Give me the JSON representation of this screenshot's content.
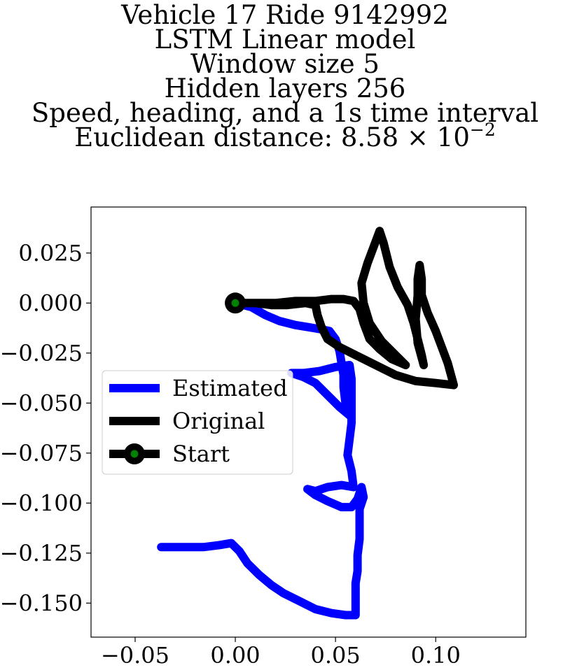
{
  "chart_data": {
    "type": "line",
    "title_lines": [
      "Vehicle 17 Ride 9142992",
      "LSTM Linear model",
      "Window size 5",
      "Hidden layers 256",
      "Speed, heading, and a 1s time interval"
    ],
    "title_metric_prefix": "Euclidean distance: ",
    "title_metric_mantissa": "8.58",
    "title_metric_times": "×",
    "title_metric_base": "10",
    "title_metric_exponent": "−2",
    "xlim": [
      -0.072,
      0.145
    ],
    "ylim": [
      -0.167,
      0.048
    ],
    "xticks": [
      -0.05,
      0.0,
      0.05,
      0.1
    ],
    "xtick_labels": [
      "−0.05",
      "0.00",
      "0.05",
      "0.10"
    ],
    "yticks": [
      0.025,
      0.0,
      -0.025,
      -0.05,
      -0.075,
      -0.1,
      -0.125,
      -0.15
    ],
    "ytick_labels": [
      "0.025",
      "0.000",
      "−0.025",
      "−0.050",
      "−0.075",
      "−0.100",
      "−0.125",
      "−0.150"
    ],
    "grid": false,
    "legend_position": "center-left",
    "series": [
      {
        "name": "Estimated",
        "color": "#0000ff",
        "points": [
          [
            0.0,
            0.0
          ],
          [
            0.008,
            -0.002
          ],
          [
            0.015,
            -0.006
          ],
          [
            0.022,
            -0.009
          ],
          [
            0.03,
            -0.011
          ],
          [
            0.036,
            -0.012
          ],
          [
            0.042,
            -0.013
          ],
          [
            0.047,
            -0.014
          ],
          [
            0.05,
            -0.018
          ],
          [
            0.052,
            -0.024
          ],
          [
            0.053,
            -0.03
          ],
          [
            0.054,
            -0.036
          ],
          [
            0.054,
            -0.042
          ],
          [
            0.055,
            -0.05
          ],
          [
            0.058,
            -0.057
          ],
          [
            0.052,
            -0.052
          ],
          [
            0.046,
            -0.046
          ],
          [
            0.04,
            -0.04
          ],
          [
            0.034,
            -0.037
          ],
          [
            0.028,
            -0.035
          ],
          [
            0.034,
            -0.035
          ],
          [
            0.042,
            -0.034
          ],
          [
            0.05,
            -0.032
          ],
          [
            0.057,
            -0.031
          ],
          [
            0.058,
            -0.038
          ],
          [
            0.058,
            -0.046
          ],
          [
            0.058,
            -0.054
          ],
          [
            0.058,
            -0.06
          ],
          [
            0.057,
            -0.068
          ],
          [
            0.056,
            -0.076
          ],
          [
            0.058,
            -0.084
          ],
          [
            0.059,
            -0.092
          ],
          [
            0.053,
            -0.091
          ],
          [
            0.046,
            -0.092
          ],
          [
            0.04,
            -0.094
          ],
          [
            0.036,
            -0.093
          ],
          [
            0.04,
            -0.096
          ],
          [
            0.046,
            -0.099
          ],
          [
            0.053,
            -0.102
          ],
          [
            0.058,
            -0.102
          ],
          [
            0.061,
            -0.098
          ],
          [
            0.063,
            -0.092
          ],
          [
            0.064,
            -0.097
          ],
          [
            0.062,
            -0.103
          ],
          [
            0.062,
            -0.11
          ],
          [
            0.062,
            -0.118
          ],
          [
            0.061,
            -0.126
          ],
          [
            0.061,
            -0.134
          ],
          [
            0.06,
            -0.14
          ],
          [
            0.06,
            -0.148
          ],
          [
            0.06,
            -0.156
          ],
          [
            0.055,
            -0.156
          ],
          [
            0.048,
            -0.155
          ],
          [
            0.04,
            -0.153
          ],
          [
            0.032,
            -0.149
          ],
          [
            0.024,
            -0.145
          ],
          [
            0.018,
            -0.141
          ],
          [
            0.012,
            -0.136
          ],
          [
            0.006,
            -0.13
          ],
          [
            0.002,
            -0.124
          ],
          [
            -0.002,
            -0.12
          ],
          [
            -0.008,
            -0.121
          ],
          [
            -0.016,
            -0.122
          ],
          [
            -0.024,
            -0.122
          ],
          [
            -0.032,
            -0.122
          ],
          [
            -0.037,
            -0.122
          ]
        ]
      },
      {
        "name": "Original",
        "color": "#000000",
        "points": [
          [
            0.0,
            0.0
          ],
          [
            0.01,
            0.0
          ],
          [
            0.02,
            0.0
          ],
          [
            0.03,
            0.001
          ],
          [
            0.04,
            0.001
          ],
          [
            0.048,
            0.002
          ],
          [
            0.054,
            0.002
          ],
          [
            0.059,
            0.001
          ],
          [
            0.062,
            -0.003
          ],
          [
            0.064,
            -0.01
          ],
          [
            0.067,
            -0.018
          ],
          [
            0.072,
            -0.023
          ],
          [
            0.078,
            -0.028
          ],
          [
            0.085,
            -0.031
          ],
          [
            0.08,
            -0.026
          ],
          [
            0.073,
            -0.019
          ],
          [
            0.067,
            -0.01
          ],
          [
            0.064,
            0.0
          ],
          [
            0.063,
            0.01
          ],
          [
            0.066,
            0.02
          ],
          [
            0.069,
            0.028
          ],
          [
            0.072,
            0.036
          ],
          [
            0.074,
            0.03
          ],
          [
            0.077,
            0.018
          ],
          [
            0.081,
            0.008
          ],
          [
            0.086,
            -0.001
          ],
          [
            0.089,
            -0.01
          ],
          [
            0.091,
            -0.018
          ],
          [
            0.093,
            -0.026
          ],
          [
            0.094,
            -0.031
          ],
          [
            0.091,
            -0.02
          ],
          [
            0.09,
            -0.008
          ],
          [
            0.091,
            0.004
          ],
          [
            0.091,
            0.012
          ],
          [
            0.092,
            0.019
          ],
          [
            0.093,
            0.012
          ],
          [
            0.093,
            0.004
          ],
          [
            0.096,
            -0.005
          ],
          [
            0.1,
            -0.014
          ],
          [
            0.103,
            -0.022
          ],
          [
            0.106,
            -0.03
          ],
          [
            0.109,
            -0.041
          ],
          [
            0.1,
            -0.04
          ],
          [
            0.09,
            -0.039
          ],
          [
            0.08,
            -0.036
          ],
          [
            0.07,
            -0.031
          ],
          [
            0.06,
            -0.026
          ],
          [
            0.052,
            -0.022
          ],
          [
            0.046,
            -0.018
          ],
          [
            0.043,
            -0.012
          ],
          [
            0.041,
            -0.006
          ],
          [
            0.04,
            -0.001
          ],
          [
            0.035,
            0.0
          ],
          [
            0.026,
            -0.001
          ],
          [
            0.018,
            -0.001
          ],
          [
            0.01,
            0.0
          ],
          [
            0.004,
            0.0
          ]
        ]
      }
    ],
    "start_point": [
      0.0,
      0.0
    ],
    "start_marker_fill": "#008000",
    "start_marker_edge": "#000000",
    "legend": [
      {
        "label": "Estimated",
        "color": "#0000ff",
        "marker": false
      },
      {
        "label": "Original",
        "color": "#000000",
        "marker": false
      },
      {
        "label": "Start",
        "color": "#000000",
        "marker": true
      }
    ]
  }
}
